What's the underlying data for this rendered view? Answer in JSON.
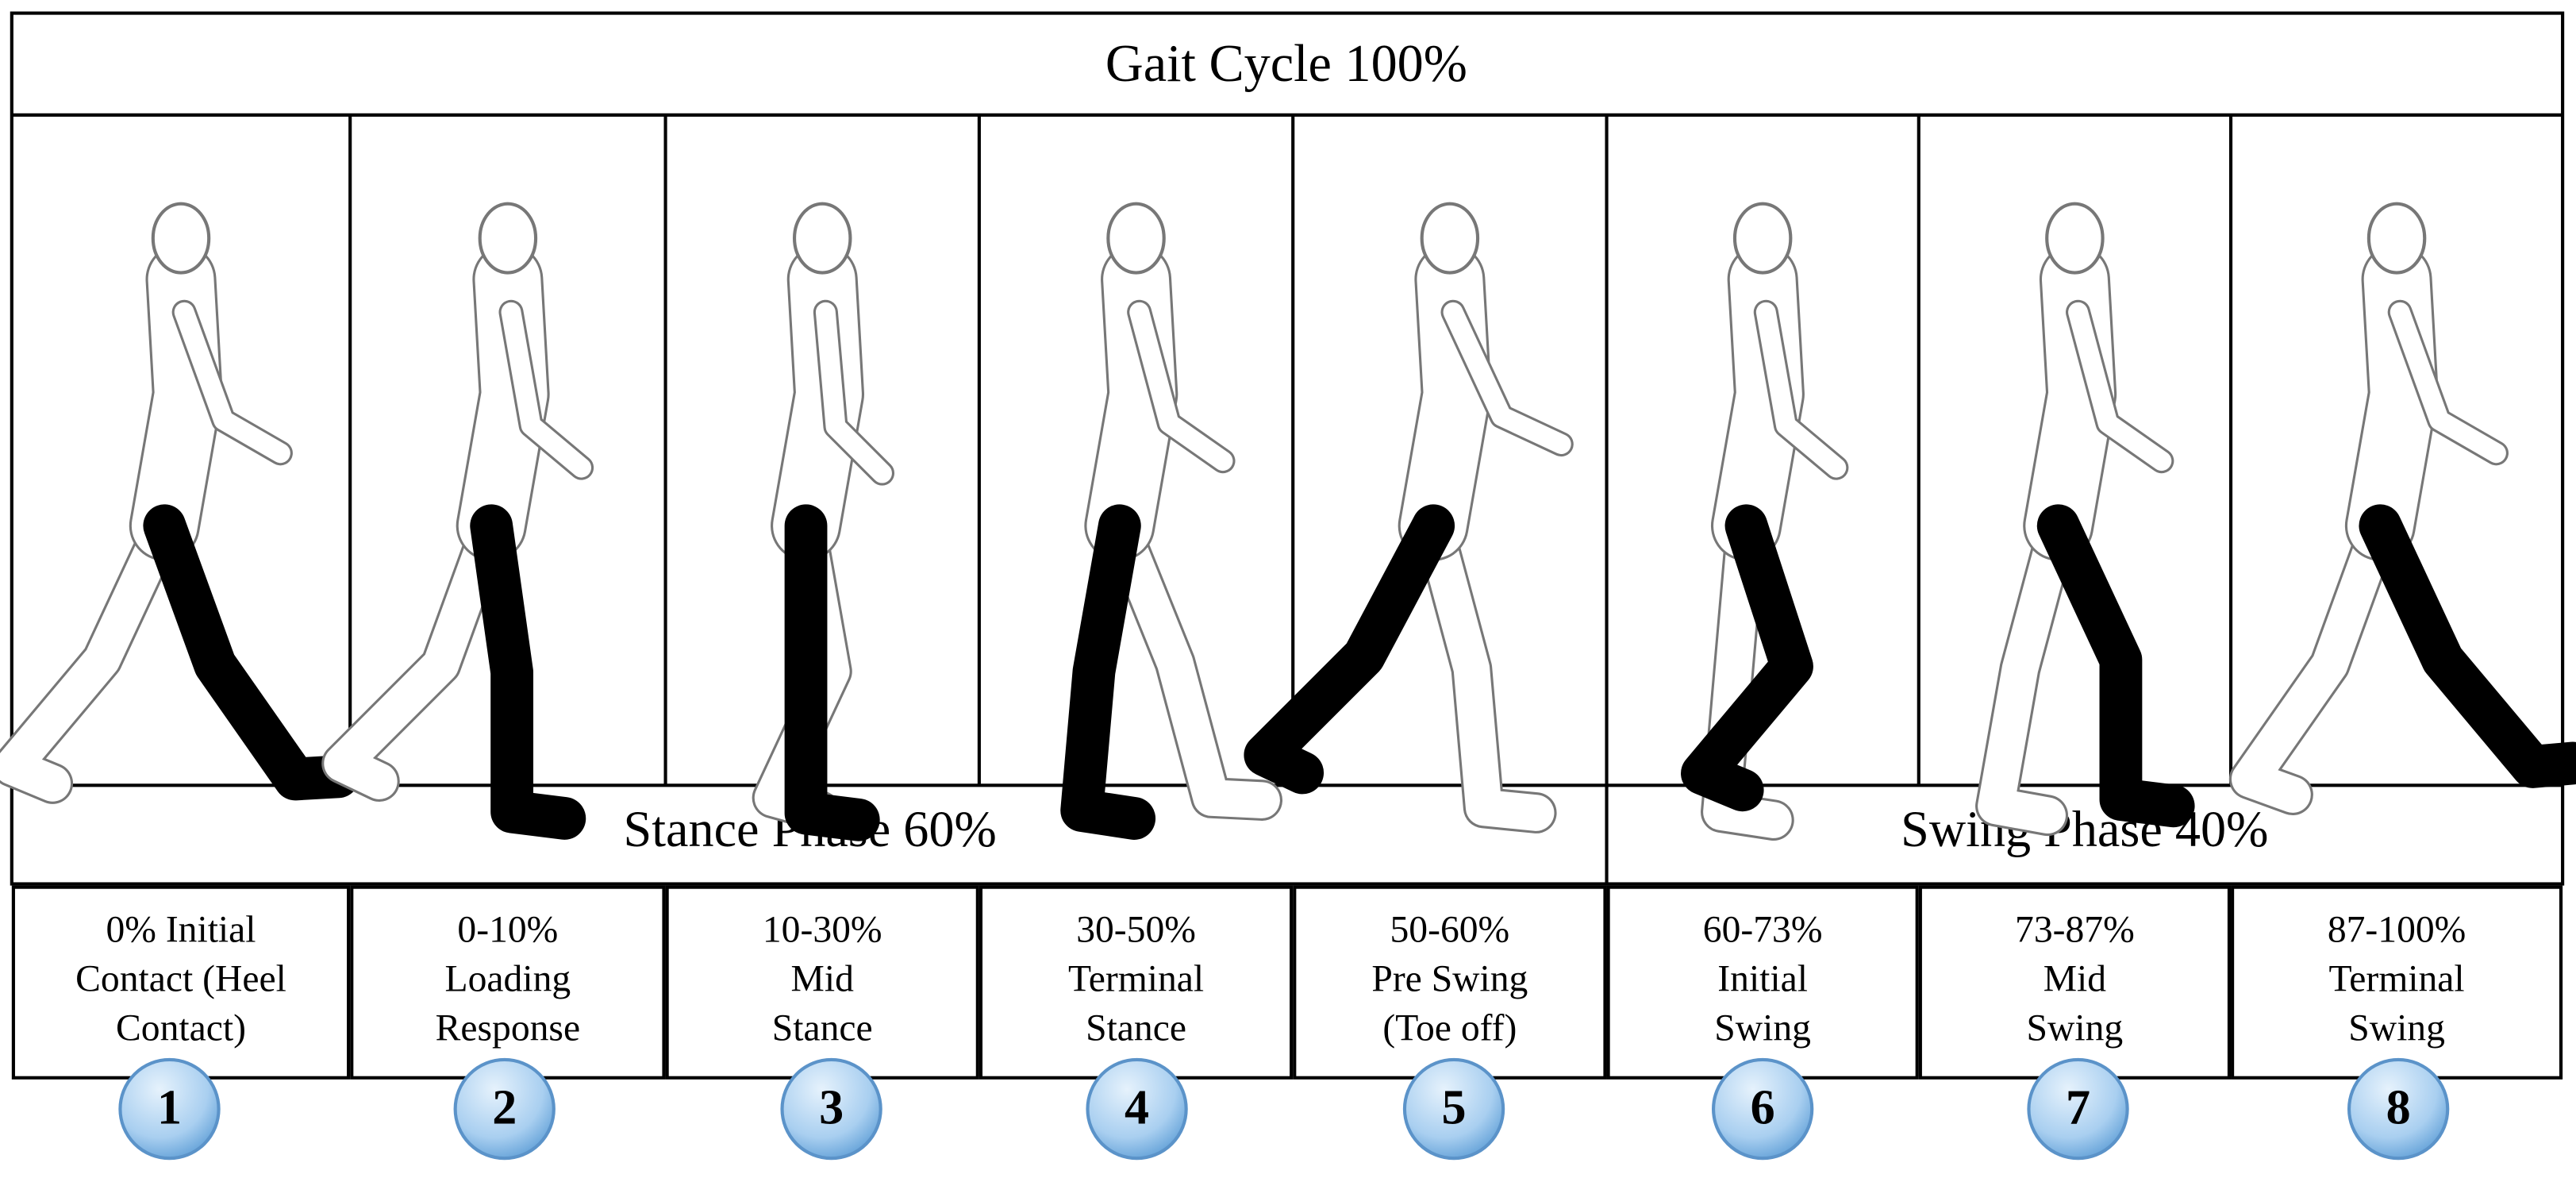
{
  "title": "Gait Cycle 100%",
  "phases": [
    {
      "label": "Stance Phase 60%"
    },
    {
      "label": "Swing Phase 40%"
    }
  ],
  "stages": [
    {
      "lines": [
        "0% Initial",
        "Contact (Heel",
        "Contact)"
      ],
      "number": "1"
    },
    {
      "lines": [
        "0-10%",
        "Loading",
        "Response"
      ],
      "number": "2"
    },
    {
      "lines": [
        "10-30%",
        "Mid",
        "Stance"
      ],
      "number": "3"
    },
    {
      "lines": [
        "30-50%",
        "Terminal",
        "Stance"
      ],
      "number": "4"
    },
    {
      "lines": [
        "50-60%",
        "Pre Swing",
        "(Toe off)"
      ],
      "number": "5"
    },
    {
      "lines": [
        "60-73%",
        "Initial",
        "Swing"
      ],
      "number": "6"
    },
    {
      "lines": [
        "73-87%",
        "Mid",
        "Swing"
      ],
      "number": "7"
    },
    {
      "lines": [
        "87-100%",
        "Terminal",
        "Swing"
      ],
      "number": "8"
    }
  ]
}
